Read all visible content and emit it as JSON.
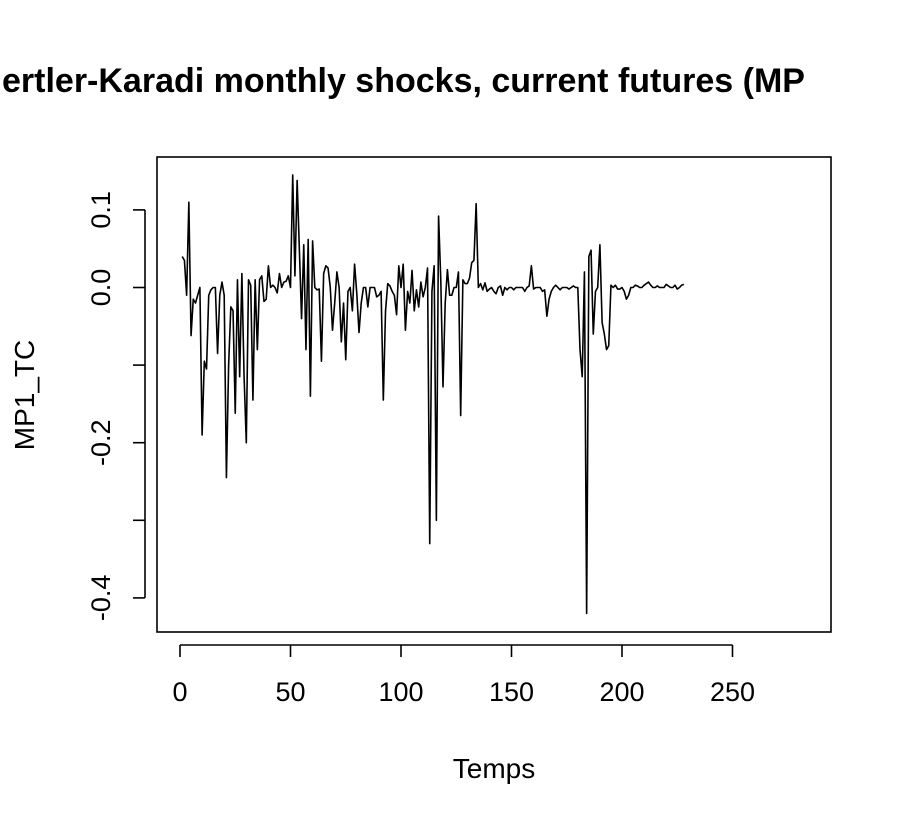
{
  "chart_data": {
    "type": "line",
    "title": "ertler-Karadi monthly shocks, current futures (MP",
    "xlabel": "Temps",
    "ylabel": "MP1_TC",
    "xlim": [
      0,
      285
    ],
    "ylim": [
      -0.44,
      0.145
    ],
    "x_ticks": [
      0,
      50,
      100,
      150,
      200,
      250
    ],
    "y_ticks": [
      0.1,
      0.0,
      -0.1,
      -0.2,
      -0.3,
      -0.4
    ],
    "y_tick_labels": [
      "0.1",
      "0.0",
      "",
      "-0.2",
      "",
      "-0.4"
    ],
    "grid": false,
    "legend": "none",
    "line_color": "#000000",
    "series": [
      {
        "values": [
          0.04,
          0.035,
          -0.01,
          0.11,
          -0.062,
          -0.015,
          -0.02,
          -0.01,
          0.0,
          -0.19,
          -0.095,
          -0.105,
          -0.01,
          -0.003,
          0.0,
          0.0,
          -0.085,
          -0.01,
          0.007,
          -0.01,
          -0.245,
          -0.1,
          -0.025,
          -0.03,
          -0.162,
          0.01,
          -0.115,
          0.018,
          -0.115,
          -0.2,
          0.01,
          0.003,
          -0.145,
          0.01,
          -0.08,
          0.01,
          0.015,
          -0.018,
          -0.015,
          0.028,
          0.0,
          0.003,
          0.0,
          -0.007,
          0.018,
          0.0,
          0.007,
          0.008,
          0.015,
          0.0,
          0.145,
          0.015,
          0.138,
          0.05,
          -0.04,
          0.055,
          -0.08,
          0.062,
          -0.14,
          0.06,
          0.0,
          -0.003,
          -0.002,
          -0.095,
          0.018,
          0.028,
          0.025,
          0.0,
          -0.055,
          -0.02,
          0.02,
          0.0,
          -0.07,
          -0.02,
          -0.093,
          -0.005,
          0.0,
          -0.03,
          0.03,
          -0.008,
          -0.058,
          -0.02,
          0.0,
          0.0,
          -0.025,
          0.0,
          0.0,
          0.0,
          -0.012,
          -0.01,
          -0.005,
          -0.145,
          -0.03,
          0.005,
          0.002,
          -0.005,
          -0.01,
          -0.035,
          0.028,
          0.0,
          0.03,
          -0.055,
          -0.005,
          -0.02,
          0.022,
          -0.03,
          -0.003,
          -0.025,
          0.007,
          -0.012,
          0.0,
          0.025,
          -0.33,
          -0.005,
          0.028,
          -0.3,
          0.092,
          0.01,
          -0.128,
          -0.02,
          0.023,
          -0.01,
          -0.01,
          0.0,
          0.0,
          0.02,
          -0.165,
          0.01,
          0.005,
          0.005,
          0.012,
          0.032,
          0.035,
          0.108,
          0.0,
          0.005,
          -0.003,
          0.006,
          -0.005,
          -0.002,
          0.0,
          -0.005,
          -0.008,
          0.0,
          0.002,
          -0.01,
          0.0,
          -0.003,
          0.0,
          0.0,
          -0.003,
          0.0,
          0.0,
          0.0,
          0.0,
          -0.005,
          0.0,
          0.002,
          0.028,
          -0.002,
          0.0,
          0.0,
          0.0,
          -0.005,
          -0.003,
          -0.037,
          -0.015,
          -0.005,
          0.0,
          0.003,
          0.0,
          -0.003,
          0.0,
          0.0,
          0.0,
          -0.002,
          0.0,
          0.002,
          0.0,
          0.0,
          -0.08,
          -0.115,
          0.02,
          -0.42,
          0.04,
          0.048,
          -0.06,
          -0.005,
          0.0,
          0.055,
          -0.045,
          -0.06,
          -0.08,
          -0.075,
          0.003,
          0.0,
          0.003,
          -0.002,
          -0.002,
          0.0,
          -0.005,
          -0.015,
          -0.01,
          0.0,
          0.0,
          0.003,
          0.002,
          0.0,
          0.0,
          0.003,
          0.005,
          0.007,
          0.003,
          0.0,
          0.0,
          0.002,
          0.0,
          0.0,
          0.0,
          0.004,
          0.002,
          0.0,
          0.0,
          0.003,
          -0.002,
          0.0,
          0.003,
          0.004
        ]
      }
    ]
  }
}
